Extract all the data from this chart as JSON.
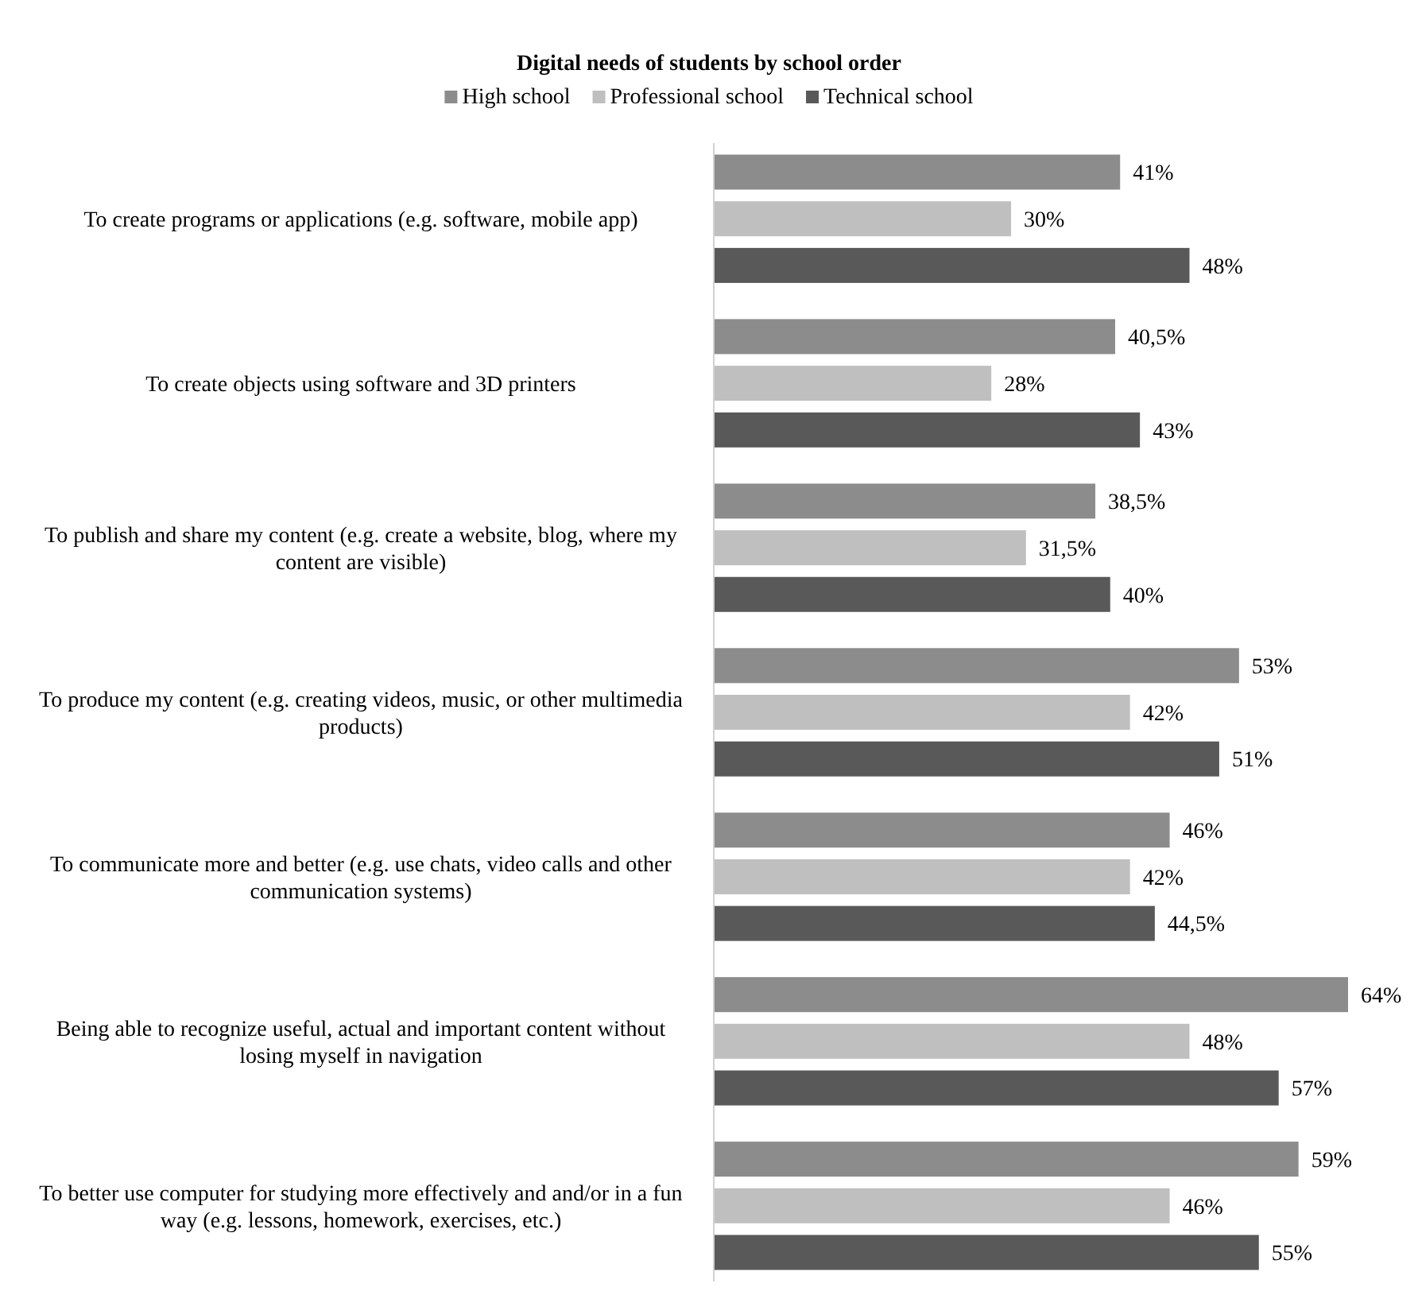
{
  "chart_data": {
    "type": "bar",
    "orientation": "horizontal",
    "title": "Digital needs of students by school order",
    "categories": [
      "To create programs or applications (e.g. software, mobile app)",
      "To create objects using software and 3D  printers",
      "To publish and share my content (e.g. create a website, blog, where my content are visible)",
      "To produce my content (e.g. creating videos, music, or other multimedia products)",
      "To communicate more and better (e.g. use chats, video calls and other communication systems)",
      "Being able to recognize useful, actual and important content without losing myself in navigation",
      "To better use computer for studying more effectively and  and/or in a fun way (e.g. lessons, homework, exercises, etc.)"
    ],
    "series": [
      {
        "name": "High school",
        "color": "#8c8c8c",
        "values": [
          41,
          40.5,
          38.5,
          53,
          46,
          64,
          59
        ],
        "value_labels": [
          "41%",
          "40,5%",
          "38,5%",
          "53%",
          "46%",
          "64%",
          "59%"
        ]
      },
      {
        "name": "Professional school",
        "color": "#bfbfbf",
        "values": [
          30,
          28,
          31.5,
          42,
          42,
          48,
          46
        ],
        "value_labels": [
          "30%",
          "28%",
          "31,5%",
          "42%",
          "42%",
          "48%",
          "46%"
        ]
      },
      {
        "name": "Technical school",
        "color": "#595959",
        "values": [
          48,
          43,
          40,
          51,
          44.5,
          57,
          55
        ],
        "value_labels": [
          "48%",
          "43%",
          "40%",
          "51%",
          "44,5%",
          "57%",
          "55%"
        ]
      }
    ],
    "legend": "top",
    "grid": false,
    "tick_labels": "y"
  }
}
